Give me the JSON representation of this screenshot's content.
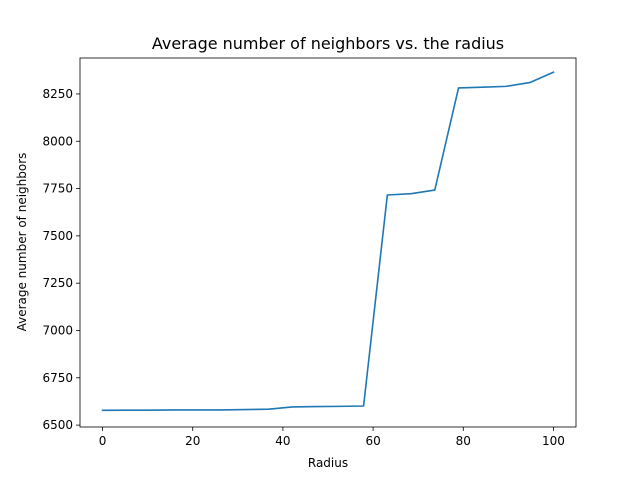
{
  "chart_data": {
    "type": "line",
    "title": "Average number of neighbors vs. the radius",
    "xlabel": "Radius",
    "ylabel": "Average number of neighbors",
    "xlim": [
      -5,
      105
    ],
    "ylim": [
      6490,
      8440
    ],
    "xticks": [
      0,
      20,
      40,
      60,
      80,
      100
    ],
    "yticks": [
      6500,
      6750,
      7000,
      7250,
      7500,
      7750,
      8000,
      8250
    ],
    "grid": false,
    "legend": "none",
    "series": [
      {
        "color": "#1f77b4",
        "x": [
          0,
          5.26,
          10.53,
          15.79,
          21.05,
          26.32,
          31.58,
          36.84,
          42.11,
          47.37,
          52.63,
          57.89,
          63.16,
          68.42,
          73.68,
          78.95,
          84.21,
          89.47,
          94.74,
          100
        ],
        "y": [
          6578,
          6579,
          6579,
          6580,
          6580,
          6580,
          6582,
          6584,
          6596,
          6598,
          6599,
          6601,
          7716,
          7723,
          7742,
          8282,
          8286,
          8290,
          8310,
          8365
        ]
      }
    ]
  }
}
